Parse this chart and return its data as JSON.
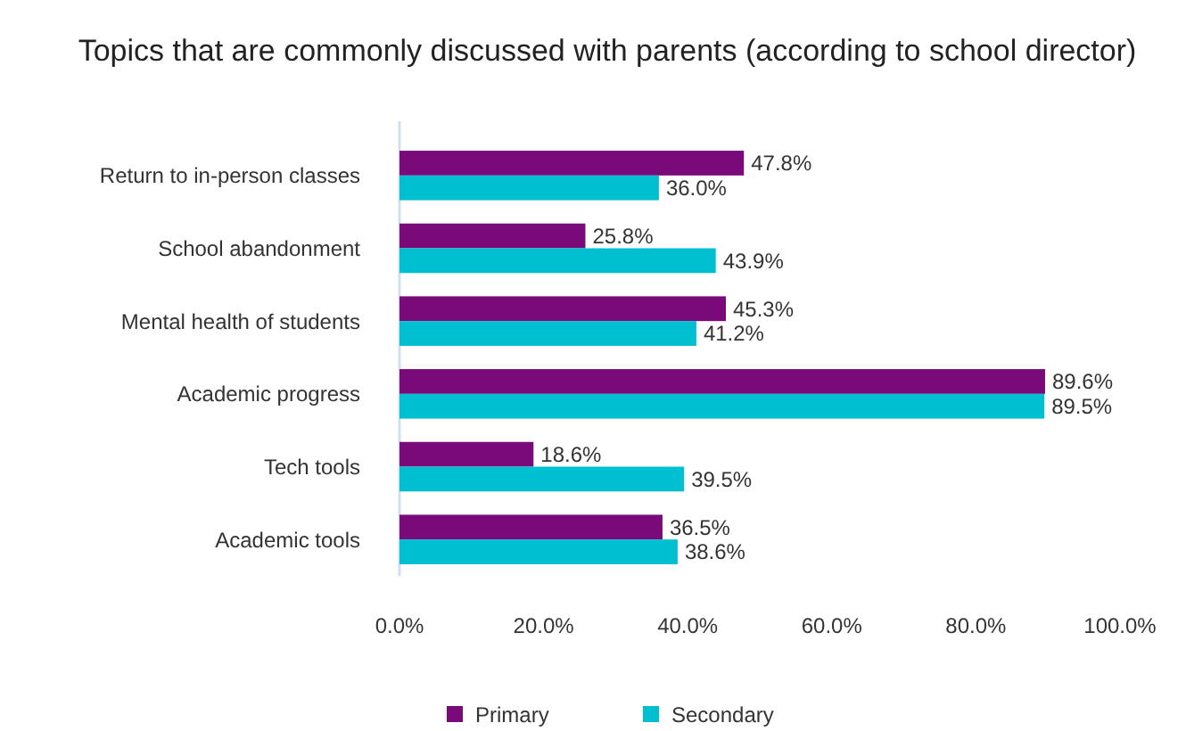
{
  "chart_data": {
    "type": "bar",
    "orientation": "horizontal",
    "title": "Topics that are commonly discussed with parents (according to school director)",
    "categories": [
      "Return to in-person classes",
      "School abandonment",
      "Mental health of students",
      "Academic progress",
      "Tech tools",
      "Academic tools"
    ],
    "series": [
      {
        "name": "Primary",
        "color": "#7a0a7a",
        "values": [
          47.8,
          25.8,
          45.3,
          89.6,
          18.6,
          36.5
        ],
        "value_labels": [
          "47.8%",
          "25.8%",
          "45.3%",
          "89.6%",
          "18.6%",
          "36.5%"
        ]
      },
      {
        "name": "Secondary",
        "color": "#00bfd0",
        "values": [
          36.0,
          43.9,
          41.2,
          89.5,
          39.5,
          38.6
        ],
        "value_labels": [
          "36.0%",
          "43.9%",
          "41.2%",
          "89.5%",
          "39.5%",
          "38.6%"
        ]
      }
    ],
    "xlim": [
      0,
      100
    ],
    "xticks": [
      {
        "value": 0,
        "label": "0.0%"
      },
      {
        "value": 20,
        "label": "20.0%"
      },
      {
        "value": 40,
        "label": "40.0%"
      },
      {
        "value": 60,
        "label": "60.0%"
      },
      {
        "value": 80,
        "label": "80.0%"
      },
      {
        "value": 100,
        "label": "100.0%"
      }
    ],
    "legend": "bottom",
    "grid": false
  }
}
